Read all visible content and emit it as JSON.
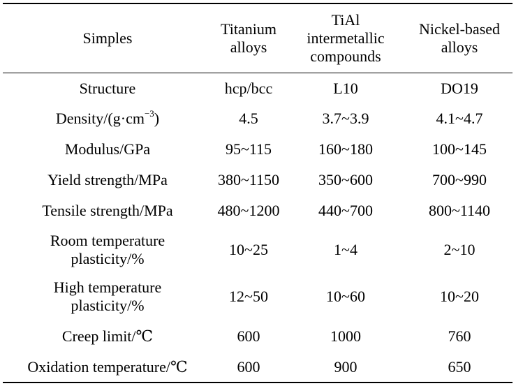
{
  "table": {
    "headers": [
      [
        "Simples"
      ],
      [
        "Titanium",
        "alloys"
      ],
      [
        "TiAl",
        "intermetallic",
        "compounds"
      ],
      [
        "Nickel-based",
        "alloys"
      ]
    ],
    "rows": [
      {
        "label": [
          "Structure"
        ],
        "values": [
          "hcp/bcc",
          "L10",
          "DO19"
        ]
      },
      {
        "label": [
          "Density/(g·cm",
          "−3",
          ")"
        ],
        "values": [
          "4.5",
          "3.7~3.9",
          "4.1~4.7"
        ]
      },
      {
        "label": [
          "Modulus/GPa"
        ],
        "values": [
          "95~115",
          "160~180",
          "100~145"
        ]
      },
      {
        "label": [
          "Yield strength/MPa"
        ],
        "values": [
          "380~1150",
          "350~600",
          "700~990"
        ]
      },
      {
        "label": [
          "Tensile strength/MPa"
        ],
        "values": [
          "480~1200",
          "440~700",
          "800~1140"
        ]
      },
      {
        "label": [
          "Room temperature",
          "plasticity/%"
        ],
        "values": [
          "10~25",
          "1~4",
          "2~10"
        ]
      },
      {
        "label": [
          "High temperature",
          "plasticity/%"
        ],
        "values": [
          "12~50",
          "10~60",
          "10~20"
        ]
      },
      {
        "label": [
          "Creep limit/℃"
        ],
        "values": [
          "600",
          "1000",
          "760"
        ]
      },
      {
        "label": [
          "Oxidation temperature/℃"
        ],
        "values": [
          "600",
          "900",
          "650"
        ]
      }
    ]
  }
}
